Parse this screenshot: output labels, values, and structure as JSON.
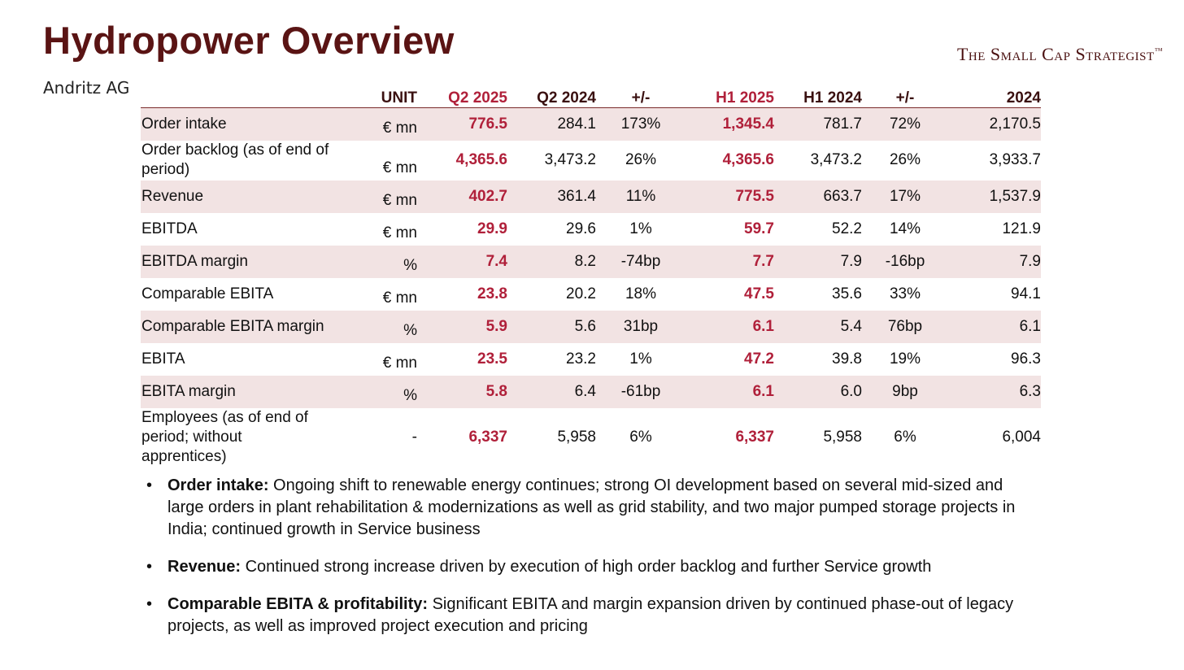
{
  "header": {
    "title": "Hydropower Overview",
    "subtitle": "Andritz AG",
    "brand": "The Small Cap Strategist",
    "brand_mark": "™"
  },
  "table": {
    "columns": [
      "UNIT",
      "Q2 2025",
      "Q2 2024",
      "+/-",
      "H1 2025",
      "H1 2024",
      "+/-",
      "2024"
    ],
    "rows": [
      {
        "label": "Order intake",
        "unit": "€ mn",
        "values": [
          "776.5",
          "284.1",
          "173%",
          "1,345.4",
          "781.7",
          "72%",
          "2,170.5"
        ]
      },
      {
        "label": "Order backlog (as of end of period)",
        "unit": "€ mn",
        "values": [
          "4,365.6",
          "3,473.2",
          "26%",
          "4,365.6",
          "3,473.2",
          "26%",
          "3,933.7"
        ]
      },
      {
        "label": "Revenue",
        "unit": "€ mn",
        "values": [
          "402.7",
          "361.4",
          "11%",
          "775.5",
          "663.7",
          "17%",
          "1,537.9"
        ]
      },
      {
        "label": "EBITDA",
        "unit": "€ mn",
        "values": [
          "29.9",
          "29.6",
          "1%",
          "59.7",
          "52.2",
          "14%",
          "121.9"
        ]
      },
      {
        "label": "EBITDA margin",
        "unit": "%",
        "values": [
          "7.4",
          "8.2",
          "-74bp",
          "7.7",
          "7.9",
          "-16bp",
          "7.9"
        ]
      },
      {
        "label": "Comparable EBITA",
        "unit": "€ mn",
        "values": [
          "23.8",
          "20.2",
          "18%",
          "47.5",
          "35.6",
          "33%",
          "94.1"
        ]
      },
      {
        "label": "Comparable EBITA margin",
        "unit": "%",
        "values": [
          "5.9",
          "5.6",
          "31bp",
          "6.1",
          "5.4",
          "76bp",
          "6.1"
        ]
      },
      {
        "label": "EBITA",
        "unit": "€ mn",
        "values": [
          "23.5",
          "23.2",
          "1%",
          "47.2",
          "39.8",
          "19%",
          "96.3"
        ]
      },
      {
        "label": "EBITA margin",
        "unit": "%",
        "values": [
          "5.8",
          "6.4",
          "-61bp",
          "6.1",
          "6.0",
          "9bp",
          "6.3"
        ]
      },
      {
        "label": "Employees (as of end of period; without apprentices)",
        "unit": "-",
        "values": [
          "6,337",
          "5,958",
          "6%",
          "6,337",
          "5,958",
          "6%",
          "6,004"
        ]
      }
    ]
  },
  "bullets": [
    {
      "head": "Order intake:",
      "text": "Ongoing shift to renewable energy continues; strong OI development based on several mid-sized and large orders in plant rehabilitation & modernizations as well as grid stability, and two major pumped storage projects in India; continued growth in Service business"
    },
    {
      "head": "Revenue:",
      "text": "Continued strong increase driven by execution of high order backlog and further Service growth"
    },
    {
      "head": "Comparable EBITA & profitability:",
      "text": "Significant EBITA and margin expansion driven by continued phase-out of legacy projects, as well as improved project execution and pricing"
    }
  ]
}
